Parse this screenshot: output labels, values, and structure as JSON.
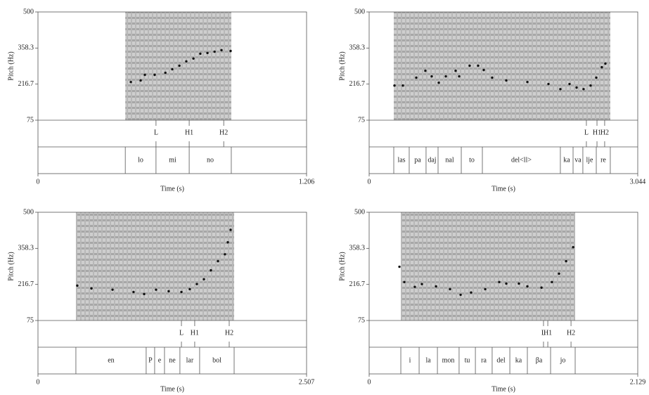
{
  "chart_data": [
    {
      "type": "scatter",
      "ylabel": "Pitch (Hz)",
      "xlabel": "Time (s)",
      "xlim": [
        0,
        1.206
      ],
      "xticks": [
        0,
        1.206
      ],
      "ylim": [
        75,
        500
      ],
      "yticks": [
        75,
        216.7,
        358.3,
        500
      ],
      "color": "#111111",
      "x": [
        0.417,
        0.461,
        0.48,
        0.524,
        0.572,
        0.603,
        0.635,
        0.666,
        0.698,
        0.729,
        0.761,
        0.793,
        0.824,
        0.865
      ],
      "y": [
        225,
        231,
        253,
        253,
        261,
        275,
        289,
        306,
        317,
        336,
        339,
        344,
        350,
        347
      ],
      "tones": [
        "L",
        "H1",
        "H2"
      ],
      "tone_times": [
        0.53,
        0.679,
        0.834
      ],
      "words": [
        "lo",
        "mi",
        "no"
      ],
      "word_boundaries": [
        0.392,
        0.53,
        0.679,
        0.868
      ]
    },
    {
      "type": "scatter",
      "ylabel": "Pitch (Hz)",
      "xlabel": "Time (s)",
      "xlim": [
        0,
        3.044
      ],
      "xticks": [
        0,
        3.044
      ],
      "ylim": [
        75,
        500
      ],
      "yticks": [
        75,
        216.7,
        358.3,
        500
      ],
      "color": "#111111",
      "x": [
        0.287,
        0.382,
        0.534,
        0.637,
        0.709,
        0.789,
        0.869,
        0.98,
        1.02,
        1.139,
        1.235,
        1.299,
        1.394,
        1.554,
        1.793,
        2.032,
        2.167,
        2.271,
        2.351,
        2.43,
        2.51,
        2.574,
        2.637,
        2.677
      ],
      "y": [
        211,
        211,
        242,
        269,
        247,
        222,
        247,
        269,
        247,
        289,
        289,
        272,
        242,
        231,
        225,
        217,
        197,
        217,
        203,
        197,
        211,
        242,
        283,
        297
      ],
      "tones": [
        "L",
        "H1",
        "H2"
      ],
      "tone_times": [
        2.462,
        2.582,
        2.669
      ],
      "words": [
        "las",
        "pa",
        "daj",
        "nal",
        "to",
        "del<ll>",
        "ka",
        "va",
        "lje",
        "re"
      ],
      "word_boundaries": [
        0.279,
        0.454,
        0.645,
        0.781,
        1.044,
        1.283,
        2.167,
        2.311,
        2.422,
        2.574,
        2.733
      ]
    },
    {
      "type": "scatter",
      "ylabel": "Pitch (Hz)",
      "xlabel": "Time (s)",
      "xlim": [
        0,
        2.507
      ],
      "xticks": [
        0,
        2.507
      ],
      "ylim": [
        75,
        500
      ],
      "yticks": [
        75,
        216.7,
        358.3,
        500
      ],
      "color": "#111111",
      "x": [
        0.367,
        0.499,
        0.696,
        0.892,
        0.991,
        1.102,
        1.22,
        1.339,
        1.417,
        1.483,
        1.549,
        1.614,
        1.68,
        1.745,
        1.772,
        1.798
      ],
      "y": [
        212,
        201,
        196,
        187,
        179,
        196,
        190,
        187,
        198,
        218,
        237,
        272,
        308,
        335,
        382,
        431
      ],
      "tones": [
        "L",
        "H1",
        "H2"
      ],
      "tone_times": [
        1.339,
        1.463,
        1.785
      ],
      "words": [
        "en",
        "P",
        "e",
        "ne",
        "lar",
        "bol"
      ],
      "word_boundaries": [
        0.354,
        1.01,
        1.089,
        1.181,
        1.325,
        1.509,
        1.831
      ]
    },
    {
      "type": "scatter",
      "ylabel": "Pitch (Hz)",
      "xlabel": "Time (s)",
      "xlim": [
        0,
        2.129
      ],
      "xticks": [
        0,
        2.129
      ],
      "ylim": [
        75,
        500
      ],
      "yticks": [
        75,
        216.7,
        358.3,
        500
      ],
      "color": "#111111",
      "x": [
        0.24,
        0.279,
        0.362,
        0.418,
        0.53,
        0.641,
        0.725,
        0.808,
        0.92,
        1.031,
        1.087,
        1.187,
        1.254,
        1.366,
        1.449,
        1.505,
        1.561,
        1.617
      ],
      "y": [
        286,
        226,
        207,
        218,
        209,
        198,
        176,
        185,
        198,
        226,
        220,
        220,
        209,
        204,
        226,
        259,
        308,
        363
      ],
      "tones": [
        "L",
        "H1",
        "H2"
      ],
      "tone_times": [
        1.382,
        1.416,
        1.6
      ],
      "words": [
        "i",
        "la",
        "mon",
        "tu",
        "ra",
        "del",
        "ka",
        "βa",
        "jo"
      ],
      "word_boundaries": [
        0.251,
        0.396,
        0.541,
        0.713,
        0.842,
        0.975,
        1.115,
        1.254,
        1.438,
        1.633
      ]
    }
  ]
}
